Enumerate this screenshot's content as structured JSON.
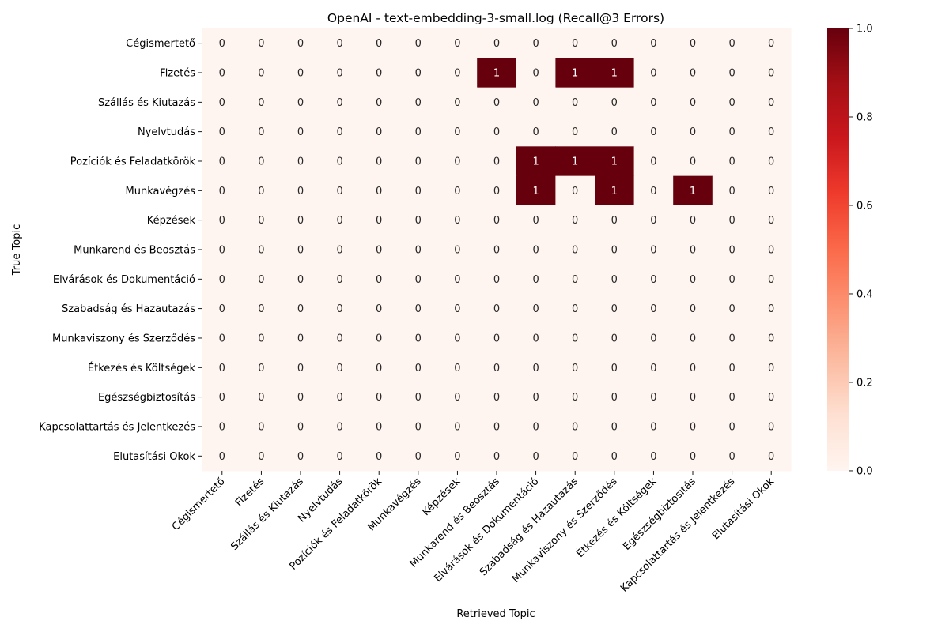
{
  "chart_data": {
    "type": "heatmap",
    "title": "OpenAI - text-embedding-3-small.log (Recall@3 Errors)",
    "xlabel": "Retrieved Topic",
    "ylabel": "True Topic",
    "rows": [
      "Cégismertető",
      "Fizetés",
      "Szállás és Kiutazás",
      "Nyelvtudás",
      "Pozíciók és Feladatkörök",
      "Munkavégzés",
      "Képzések",
      "Munkarend és Beosztás",
      "Elvárások és Dokumentáció",
      "Szabadság és Hazautazás",
      "Munkaviszony és Szerződés",
      "Étkezés és Költségek",
      "Egészségbiztosítás",
      "Kapcsolattartás és Jelentkezés",
      "Elutasítási Okok"
    ],
    "columns": [
      "Cégismertető",
      "Fizetés",
      "Szállás és Kiutazás",
      "Nyelvtudás",
      "Pozíciók és Feladatkörök",
      "Munkavégzés",
      "Képzések",
      "Munkarend és Beosztás",
      "Elvárások és Dokumentáció",
      "Szabadság és Hazautazás",
      "Munkaviszony és Szerződés",
      "Étkezés és Költségek",
      "Egészségbiztosítás",
      "Kapcsolattartás és Jelentkezés",
      "Elutasítási Okok"
    ],
    "values": [
      [
        0,
        0,
        0,
        0,
        0,
        0,
        0,
        0,
        0,
        0,
        0,
        0,
        0,
        0,
        0
      ],
      [
        0,
        0,
        0,
        0,
        0,
        0,
        0,
        1,
        0,
        1,
        1,
        0,
        0,
        0,
        0
      ],
      [
        0,
        0,
        0,
        0,
        0,
        0,
        0,
        0,
        0,
        0,
        0,
        0,
        0,
        0,
        0
      ],
      [
        0,
        0,
        0,
        0,
        0,
        0,
        0,
        0,
        0,
        0,
        0,
        0,
        0,
        0,
        0
      ],
      [
        0,
        0,
        0,
        0,
        0,
        0,
        0,
        0,
        1,
        1,
        1,
        0,
        0,
        0,
        0
      ],
      [
        0,
        0,
        0,
        0,
        0,
        0,
        0,
        0,
        1,
        0,
        1,
        0,
        1,
        0,
        0
      ],
      [
        0,
        0,
        0,
        0,
        0,
        0,
        0,
        0,
        0,
        0,
        0,
        0,
        0,
        0,
        0
      ],
      [
        0,
        0,
        0,
        0,
        0,
        0,
        0,
        0,
        0,
        0,
        0,
        0,
        0,
        0,
        0
      ],
      [
        0,
        0,
        0,
        0,
        0,
        0,
        0,
        0,
        0,
        0,
        0,
        0,
        0,
        0,
        0
      ],
      [
        0,
        0,
        0,
        0,
        0,
        0,
        0,
        0,
        0,
        0,
        0,
        0,
        0,
        0,
        0
      ],
      [
        0,
        0,
        0,
        0,
        0,
        0,
        0,
        0,
        0,
        0,
        0,
        0,
        0,
        0,
        0
      ],
      [
        0,
        0,
        0,
        0,
        0,
        0,
        0,
        0,
        0,
        0,
        0,
        0,
        0,
        0,
        0
      ],
      [
        0,
        0,
        0,
        0,
        0,
        0,
        0,
        0,
        0,
        0,
        0,
        0,
        0,
        0,
        0
      ],
      [
        0,
        0,
        0,
        0,
        0,
        0,
        0,
        0,
        0,
        0,
        0,
        0,
        0,
        0,
        0
      ],
      [
        0,
        0,
        0,
        0,
        0,
        0,
        0,
        0,
        0,
        0,
        0,
        0,
        0,
        0,
        0
      ]
    ],
    "colorbar": {
      "range": [
        0,
        1
      ],
      "ticks": [
        "0.0",
        "0.2",
        "0.4",
        "0.6",
        "0.8",
        "1.0"
      ],
      "colormap": "Reds",
      "low_color": "#fff5f0",
      "high_color": "#67000d"
    },
    "annotation_colors": {
      "on_low": "#262626",
      "on_high": "#ffffff"
    }
  }
}
